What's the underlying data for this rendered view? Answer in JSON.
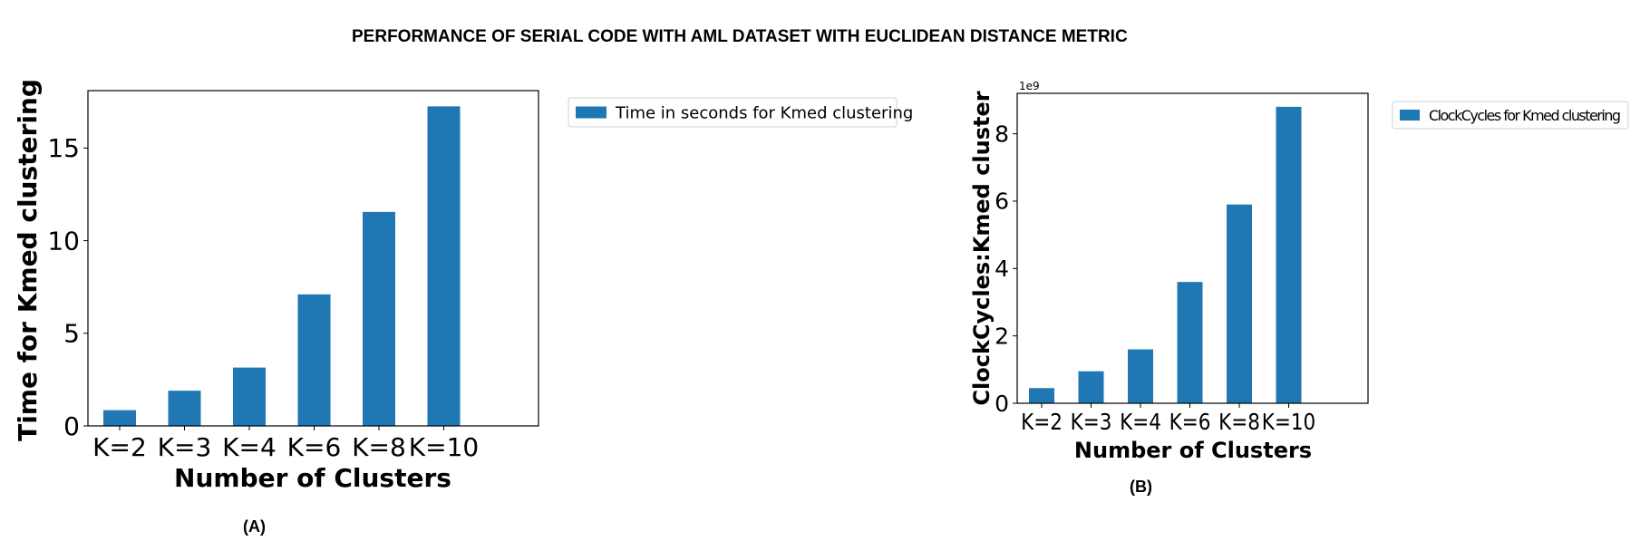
{
  "page": {
    "title": "PERFORMANCE OF SERIAL CODE WITH AML DATASET WITH EUCLIDEAN DISTANCE METRIC"
  },
  "panels": {
    "a_label": "(A)",
    "b_label": "(B)"
  },
  "colors": {
    "bar": "#1f77b4",
    "axis": "#000000",
    "background": "#ffffff"
  },
  "chart_data": [
    {
      "type": "bar",
      "categories": [
        "K=2",
        "K=3",
        "K=4",
        "K=6",
        "K=8",
        "K=10"
      ],
      "series": [
        {
          "name": "Time in seconds for Kmed clustering",
          "values": [
            0.85,
            1.9,
            3.15,
            7.1,
            11.55,
            17.25
          ]
        }
      ],
      "xlabel": "Number of Clusters",
      "ylabel": "Time for Kmed clustering",
      "ylim": [
        0,
        18.1
      ],
      "yticks": [
        0,
        5,
        10,
        15
      ],
      "ytick_labels": [
        "0",
        "5",
        "10",
        "15"
      ],
      "legend_position": "outside-right",
      "grid": false
    },
    {
      "type": "bar",
      "categories": [
        "K=2",
        "K=3",
        "K=4",
        "K=6",
        "K=8",
        "K=10"
      ],
      "series": [
        {
          "name": "ClockCycles for Kmed clustering",
          "values": [
            0.45,
            0.95,
            1.6,
            3.6,
            5.9,
            8.8
          ]
        }
      ],
      "xlabel": "Number of Clusters",
      "ylabel": "ClockCycles:Kmed cluster",
      "y_offset_label": "1e9",
      "ylim": [
        0,
        9.2
      ],
      "yticks": [
        0,
        2,
        4,
        6,
        8
      ],
      "ytick_labels": [
        "0",
        "2",
        "4",
        "6",
        "8"
      ],
      "legend_position": "outside-right",
      "grid": false
    }
  ]
}
